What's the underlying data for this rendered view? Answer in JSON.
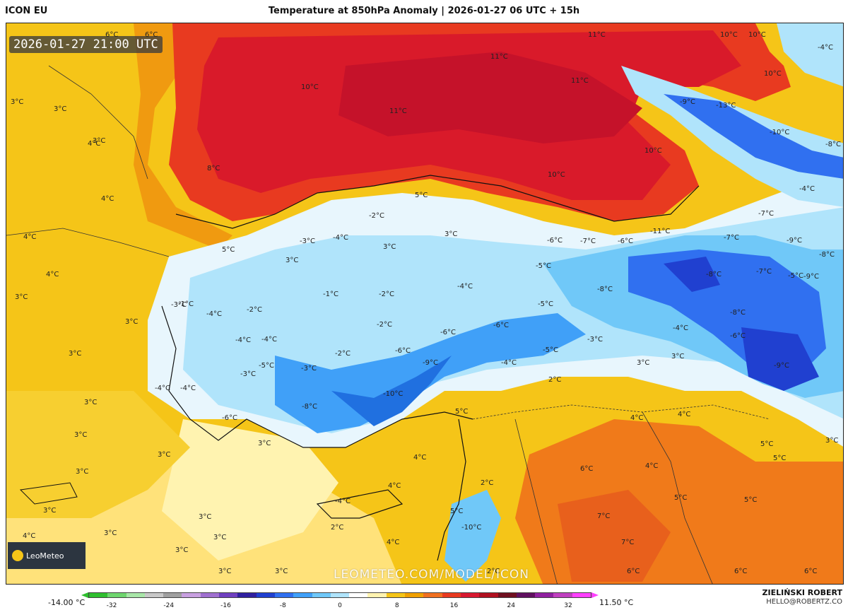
{
  "header": {
    "model": "ICON EU",
    "title": "Temperature at 850hPa Anomaly | 2026-01-27 06 UTC + 15h"
  },
  "map": {
    "timestamp": "2026-01-27 21:00 UTC",
    "watermark": "LEOMETEO.COM/MODEL/ICON",
    "logo_text": "LeoMeteo",
    "labels": [
      "6°C",
      "6°C",
      "11°C",
      "10°C",
      "10°C",
      "-4°C",
      "10°C",
      "11°C",
      "11°C",
      "11°C",
      "-9°C",
      "-13°C",
      "10°C",
      "-10°C",
      "-8°C",
      "3°C",
      "3°C",
      "10°C",
      "-4°C",
      "4°C",
      "3°C",
      "8°C",
      "10°C",
      "4°C",
      "5°C",
      "-2°C",
      "-7°C",
      "3°C",
      "-4°C",
      "-6°C",
      "-6°C",
      "-11°C",
      "-7°C",
      "-9°C",
      "4°C",
      "3°C",
      "5°C",
      "-3°C",
      "3°C",
      "-7°C",
      "4°C",
      "-8°C",
      "-8°C",
      "-5°C",
      "-9°C",
      "3°C",
      "-1°C",
      "-1°C",
      "-2°C",
      "-4°C",
      "-8°C",
      "-4°C",
      "-2°C",
      "-6°C",
      "-6°C",
      "-5°C",
      "-7°C",
      "-8°C",
      "-5°C",
      "3°C",
      "-3°C",
      "-2°C",
      "-4°C",
      "3°C",
      "-4°C",
      "-3°C",
      "-5°C",
      "-6°C",
      "-4°C",
      "3°C",
      "-6°C",
      "-5°C",
      "-2°C",
      "-3°C",
      "-9°C",
      "-4°C",
      "-4°C",
      "-9°C",
      "-3°C",
      "3°C",
      "-4°C",
      "-10°C",
      "2°C",
      "3°C",
      "-8°C",
      "5°C",
      "4°C",
      "4°C",
      "-6°C",
      "3°C",
      "5°C",
      "3°C",
      "3°C",
      "3°C",
      "4°C",
      "6°C",
      "4°C",
      "5°C",
      "3°C",
      "2°C",
      "4°C",
      "5°C",
      "5°C",
      "5°C",
      "3°C",
      "4°C",
      "-4°C",
      "3°C",
      "2°C",
      "-10°C",
      "7°C",
      "3°C",
      "3°C",
      "3°C",
      "4°C",
      "7°C",
      "3°C",
      "3°C",
      "2°C",
      "6°C",
      "6°C",
      "6°C"
    ]
  },
  "colorbar": {
    "min_label": "-14.00 °C",
    "max_label": "11.50 °C",
    "ticks": [
      "-32",
      "-24",
      "-16",
      "-8",
      "0",
      "8",
      "16",
      "24",
      "32"
    ],
    "colors": [
      "#2fbf2f",
      "#6fd66f",
      "#a8e6a8",
      "#c8c8c8",
      "#a0a0a0",
      "#c8a0e0",
      "#a070d0",
      "#7040c0",
      "#3020a0",
      "#2040d0",
      "#3070f0",
      "#40a0f8",
      "#70c8f8",
      "#b0e4fb",
      "#ffffff",
      "#fff3b0",
      "#f5c518",
      "#f0a000",
      "#f07020",
      "#e83a20",
      "#d81830",
      "#b01020",
      "#701020",
      "#601060",
      "#9020a0",
      "#c040c0",
      "#ff40ff"
    ]
  },
  "footer": {
    "author": "ZIELIŃSKI ROBERT",
    "email": "HELLO@ROBERTZ.CO"
  }
}
